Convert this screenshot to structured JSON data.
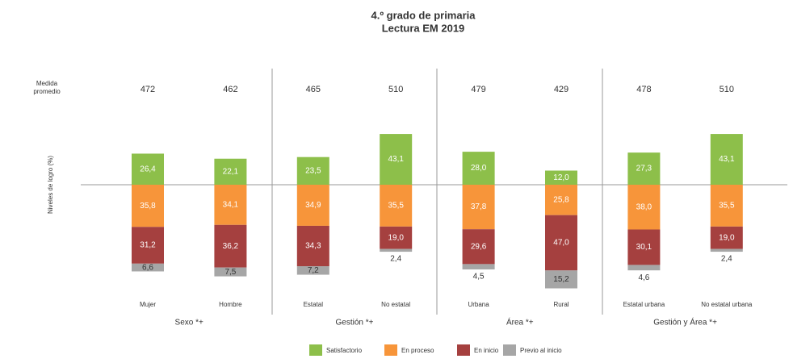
{
  "chart_data": {
    "type": "diverging-bar",
    "title": "4.º grado de primaria",
    "subtitle": "Lectura EM 2019",
    "y_axis_label": "Niveles de logro (%)",
    "average_label": "Medida promedio",
    "categories": [
      "Mujer",
      "Hombre",
      "Estatal",
      "No estatal",
      "Urbana",
      "Rural",
      "Estatal urbana",
      "No estatal urbana"
    ],
    "averages": [
      472,
      462,
      465,
      510,
      479,
      429,
      478,
      510
    ],
    "groups": [
      "Sexo *+",
      "Gestión *+",
      "Área *+",
      "Gestión y Área *+"
    ],
    "series": [
      {
        "name": "Satisfactorio",
        "color": "#8dbf4a",
        "values": [
          26.4,
          22.1,
          23.5,
          43.1,
          28.0,
          12.0,
          27.3,
          43.1
        ],
        "value_labels": [
          "26,4",
          "22,1",
          "23,5",
          "43,1",
          "28,0",
          "12,0",
          "27,3",
          "43,1"
        ]
      },
      {
        "name": "En proceso",
        "color": "#f7953a",
        "values": [
          35.8,
          34.1,
          34.9,
          35.5,
          37.8,
          25.8,
          38.0,
          35.5
        ],
        "value_labels": [
          "35,8",
          "34,1",
          "34,9",
          "35,5",
          "37,8",
          "25,8",
          "38,0",
          "35,5"
        ]
      },
      {
        "name": "En inicio",
        "color": "#a5403f",
        "values": [
          31.2,
          36.2,
          34.3,
          19.0,
          29.6,
          47.0,
          30.1,
          19.0
        ],
        "value_labels": [
          "31,2",
          "36,2",
          "34,3",
          "19,0",
          "29,6",
          "47,0",
          "30,1",
          "19,0"
        ]
      },
      {
        "name": "Previo al inicio",
        "color": "#a6a6a6",
        "values": [
          6.6,
          7.5,
          7.2,
          2.4,
          4.5,
          15.2,
          4.6,
          2.4
        ],
        "value_labels": [
          "6,6",
          "7,5",
          "7,2",
          "2,4",
          "4,5",
          "15,2",
          "4,6",
          "2,4"
        ]
      }
    ]
  }
}
